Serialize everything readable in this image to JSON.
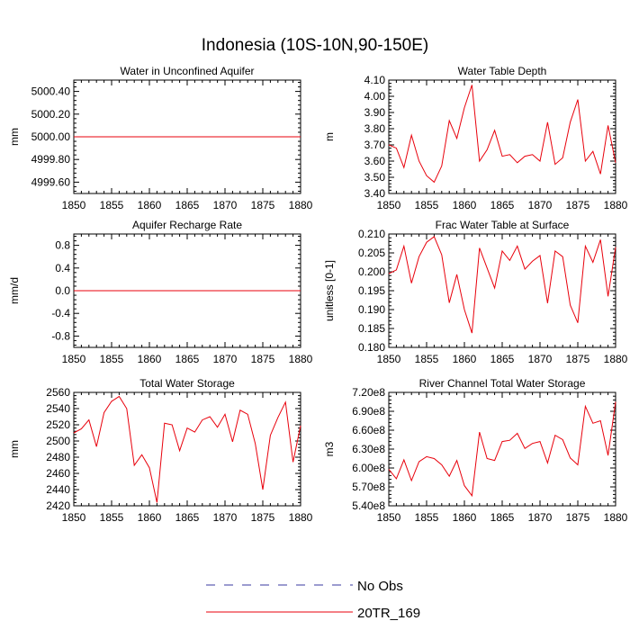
{
  "figure": {
    "title": "Indonesia (10S-10N,90-150E)",
    "series_color": "#e8000b",
    "obs_color": "#3a3aa0"
  },
  "legend": {
    "items": [
      {
        "label": "No Obs",
        "style": "dashed"
      },
      {
        "label": "20TR_169",
        "style": "solid"
      }
    ]
  },
  "chart_data": [
    {
      "type": "line",
      "title": "Water in Unconfined Aquifer",
      "ylabel": "mm",
      "xlim": [
        1850,
        1880
      ],
      "ylim": [
        4999.5,
        5000.5
      ],
      "xticks": [
        1850,
        1855,
        1860,
        1865,
        1870,
        1875,
        1880
      ],
      "yticks": [
        4999.6,
        4999.8,
        5000.0,
        5000.2,
        5000.4
      ],
      "ytick_labels": [
        "4999.60",
        "4999.80",
        "5000.00",
        "5000.20",
        "5000.40"
      ],
      "x": [
        1850,
        1880
      ],
      "series": [
        {
          "name": "20TR_169",
          "values": [
            5000.0,
            5000.0
          ]
        }
      ]
    },
    {
      "type": "line",
      "title": "Water Table Depth",
      "ylabel": "m",
      "xlim": [
        1850,
        1880
      ],
      "ylim": [
        3.4,
        4.1
      ],
      "xticks": [
        1850,
        1855,
        1860,
        1865,
        1870,
        1875,
        1880
      ],
      "yticks": [
        3.4,
        3.5,
        3.6,
        3.7,
        3.8,
        3.9,
        4.0,
        4.1
      ],
      "ytick_labels": [
        "3.40",
        "3.50",
        "3.60",
        "3.70",
        "3.80",
        "3.90",
        "4.00",
        "4.10"
      ],
      "x": [
        1850,
        1851,
        1852,
        1853,
        1854,
        1855,
        1856,
        1857,
        1858,
        1859,
        1860,
        1861,
        1862,
        1863,
        1864,
        1865,
        1866,
        1867,
        1868,
        1869,
        1870,
        1871,
        1872,
        1873,
        1874,
        1875,
        1876,
        1877,
        1878,
        1879,
        1880
      ],
      "series": [
        {
          "name": "20TR_169",
          "values": [
            3.7,
            3.68,
            3.56,
            3.76,
            3.6,
            3.51,
            3.47,
            3.57,
            3.85,
            3.74,
            3.93,
            4.07,
            3.6,
            3.67,
            3.79,
            3.63,
            3.64,
            3.59,
            3.63,
            3.64,
            3.6,
            3.84,
            3.58,
            3.62,
            3.84,
            3.98,
            3.6,
            3.66,
            3.52,
            3.82,
            3.59
          ]
        }
      ]
    },
    {
      "type": "line",
      "title": "Aquifer Recharge Rate",
      "ylabel": "mm/d",
      "xlim": [
        1850,
        1880
      ],
      "ylim": [
        -1.0,
        1.0
      ],
      "xticks": [
        1850,
        1855,
        1860,
        1865,
        1870,
        1875,
        1880
      ],
      "yticks": [
        -0.8,
        -0.4,
        0.0,
        0.4,
        0.8
      ],
      "ytick_labels": [
        "-0.8",
        "-0.4",
        "0.0",
        "0.4",
        "0.8"
      ],
      "x": [
        1850,
        1880
      ],
      "series": [
        {
          "name": "20TR_169",
          "values": [
            0.0,
            0.0
          ]
        }
      ]
    },
    {
      "type": "line",
      "title": "Frac Water Table at Surface",
      "ylabel": "unitless [0-1]",
      "xlim": [
        1850,
        1880
      ],
      "ylim": [
        0.18,
        0.21
      ],
      "xticks": [
        1850,
        1855,
        1860,
        1865,
        1870,
        1875,
        1880
      ],
      "yticks": [
        0.18,
        0.185,
        0.19,
        0.195,
        0.2,
        0.205,
        0.21
      ],
      "ytick_labels": [
        "0.180",
        "0.185",
        "0.190",
        "0.195",
        "0.200",
        "0.205",
        "0.210"
      ],
      "x": [
        1850,
        1851,
        1852,
        1853,
        1854,
        1855,
        1856,
        1857,
        1858,
        1859,
        1860,
        1861,
        1862,
        1863,
        1864,
        1865,
        1866,
        1867,
        1868,
        1869,
        1870,
        1871,
        1872,
        1873,
        1874,
        1875,
        1876,
        1877,
        1878,
        1879,
        1880
      ],
      "series": [
        {
          "name": "20TR_169",
          "values": [
            0.1995,
            0.2005,
            0.2068,
            0.197,
            0.204,
            0.2078,
            0.2093,
            0.2045,
            0.1918,
            0.1993,
            0.19,
            0.1838,
            0.2063,
            0.201,
            0.1957,
            0.2055,
            0.203,
            0.2068,
            0.2007,
            0.2028,
            0.2043,
            0.1917,
            0.2055,
            0.204,
            0.1912,
            0.1865,
            0.2068,
            0.2025,
            0.2085,
            0.1935,
            0.2065
          ]
        }
      ]
    },
    {
      "type": "line",
      "title": "Total Water Storage",
      "ylabel": "mm",
      "xlim": [
        1850,
        1880
      ],
      "ylim": [
        2420,
        2560
      ],
      "xticks": [
        1850,
        1855,
        1860,
        1865,
        1870,
        1875,
        1880
      ],
      "yticks": [
        2420,
        2440,
        2460,
        2480,
        2500,
        2520,
        2540,
        2560
      ],
      "ytick_labels": [
        "2420",
        "2440",
        "2460",
        "2480",
        "2500",
        "2520",
        "2540",
        "2560"
      ],
      "x": [
        1850,
        1851,
        1852,
        1853,
        1854,
        1855,
        1856,
        1857,
        1858,
        1859,
        1860,
        1861,
        1862,
        1863,
        1864,
        1865,
        1866,
        1867,
        1868,
        1869,
        1870,
        1871,
        1872,
        1873,
        1874,
        1875,
        1876,
        1877,
        1878,
        1879,
        1880
      ],
      "series": [
        {
          "name": "20TR_169",
          "values": [
            2510,
            2515,
            2526,
            2493,
            2535,
            2549,
            2555,
            2540,
            2470,
            2483,
            2467,
            2424,
            2522,
            2520,
            2488,
            2516,
            2511,
            2526,
            2530,
            2517,
            2533,
            2499,
            2538,
            2533,
            2497,
            2440,
            2507,
            2529,
            2548,
            2474,
            2519
          ]
        }
      ]
    },
    {
      "type": "line",
      "title": "River Channel Total Water Storage",
      "ylabel": "m3",
      "xlim": [
        1850,
        1880
      ],
      "ylim": [
        540000000,
        720000000
      ],
      "xticks": [
        1850,
        1855,
        1860,
        1865,
        1870,
        1875,
        1880
      ],
      "yticks": [
        540000000,
        570000000,
        600000000,
        630000000,
        660000000,
        690000000,
        720000000
      ],
      "ytick_labels": [
        "5.40e8",
        "5.70e8",
        "6.00e8",
        "6.30e8",
        "6.60e8",
        "6.90e8",
        "7.20e8"
      ],
      "x": [
        1850,
        1851,
        1852,
        1853,
        1854,
        1855,
        1856,
        1857,
        1858,
        1859,
        1860,
        1861,
        1862,
        1863,
        1864,
        1865,
        1866,
        1867,
        1868,
        1869,
        1870,
        1871,
        1872,
        1873,
        1874,
        1875,
        1876,
        1877,
        1878,
        1879,
        1880
      ],
      "series": [
        {
          "name": "20TR_169",
          "values": [
            598000000,
            583000000,
            613000000,
            580000000,
            610000000,
            618000000,
            615000000,
            605000000,
            587000000,
            612000000,
            572000000,
            556000000,
            657000000,
            615000000,
            612000000,
            642000000,
            644000000,
            655000000,
            631000000,
            639000000,
            642000000,
            608000000,
            652000000,
            645000000,
            616000000,
            605000000,
            698000000,
            671000000,
            675000000,
            620000000,
            705000000
          ]
        }
      ]
    }
  ]
}
